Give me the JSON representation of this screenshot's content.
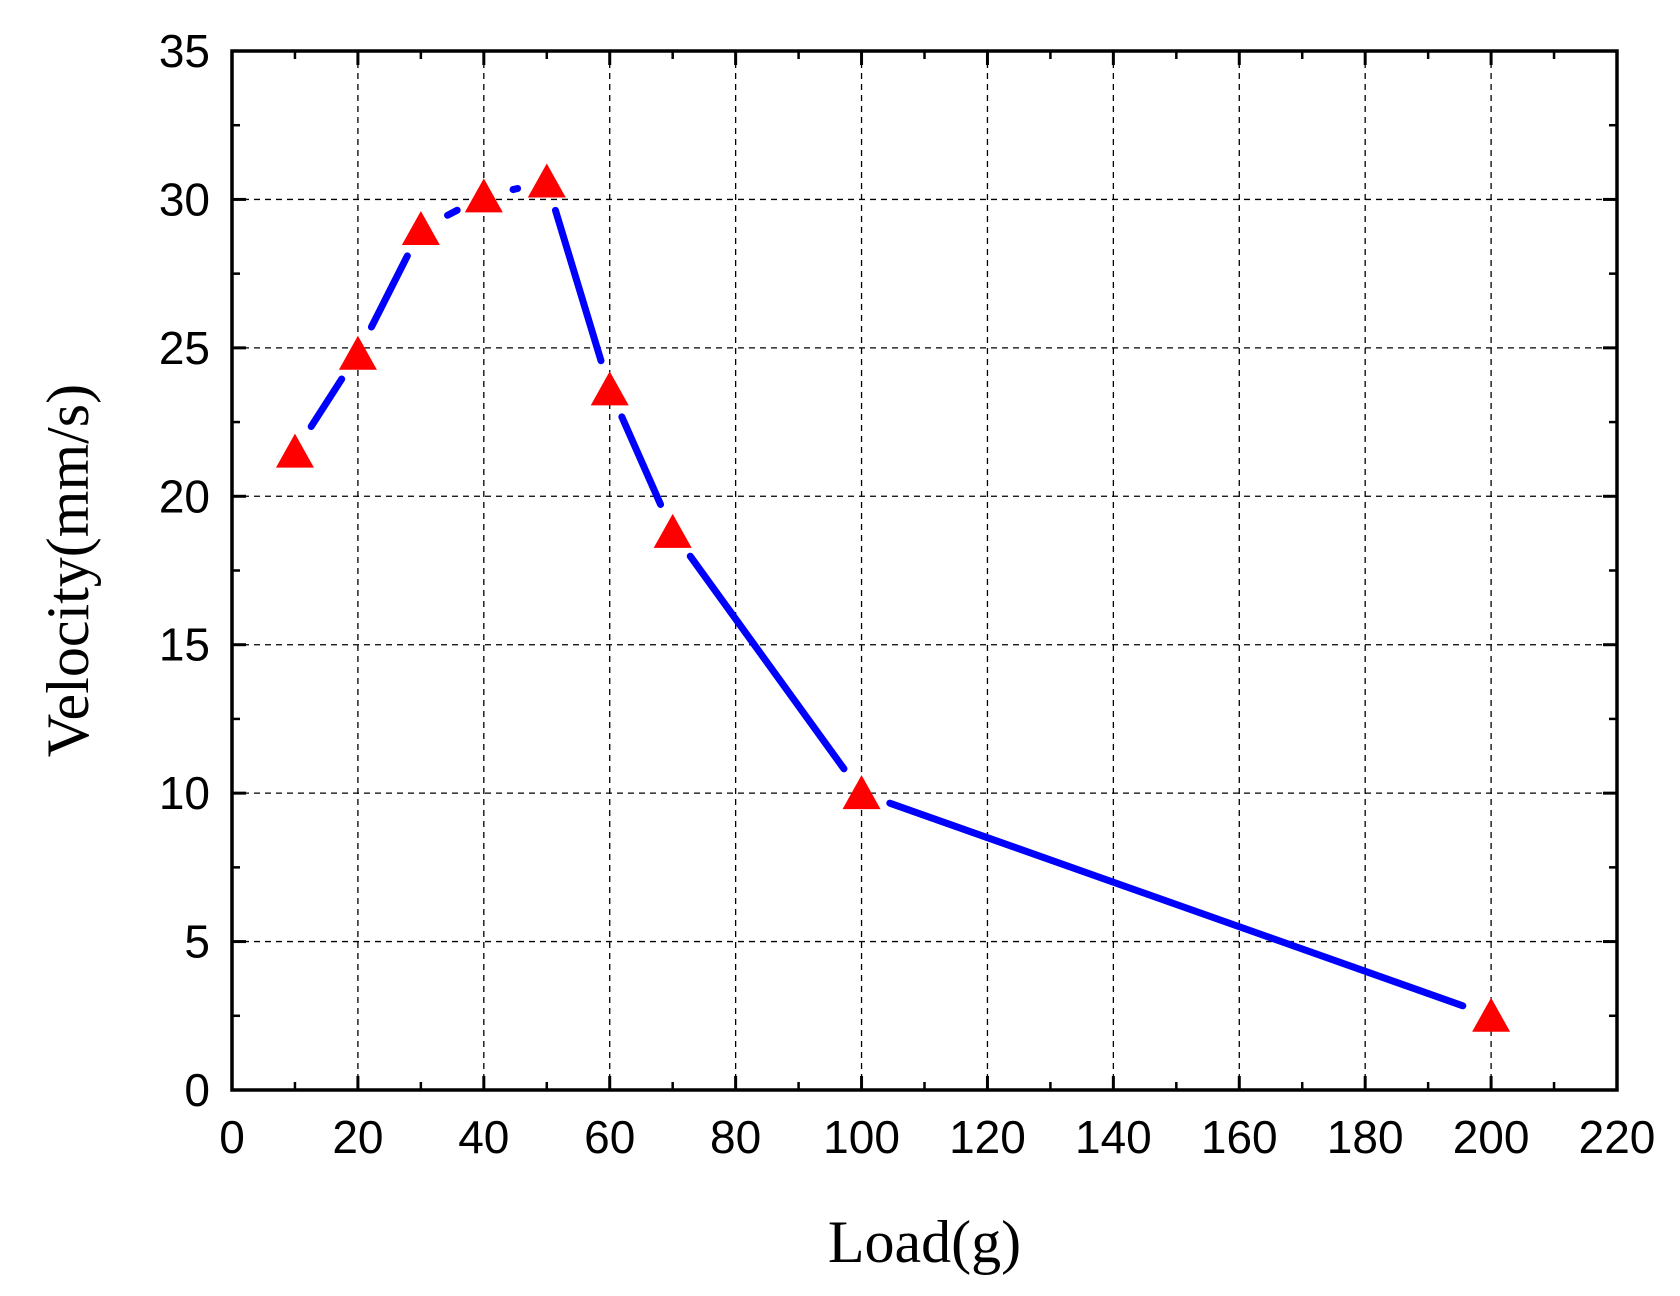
{
  "chart_data": {
    "type": "line",
    "title": "",
    "xlabel": "Load(g)",
    "ylabel": "Velocity(mm/s)",
    "xlim": [
      0,
      220
    ],
    "ylim": [
      0,
      35
    ],
    "xticks": [
      0,
      20,
      40,
      60,
      80,
      100,
      120,
      140,
      160,
      180,
      200,
      220
    ],
    "yticks": [
      0,
      5,
      10,
      15,
      20,
      25,
      30,
      35
    ],
    "grid": true,
    "series": [
      {
        "x": [
          10,
          20,
          30,
          40,
          50,
          60,
          70,
          100,
          200
        ],
        "y": [
          21.5,
          24.8,
          29.0,
          30.1,
          30.6,
          23.6,
          18.8,
          10.0,
          2.5
        ],
        "line_color": "#0000ff",
        "marker": "triangle",
        "marker_color": "#ff0000"
      }
    ]
  }
}
